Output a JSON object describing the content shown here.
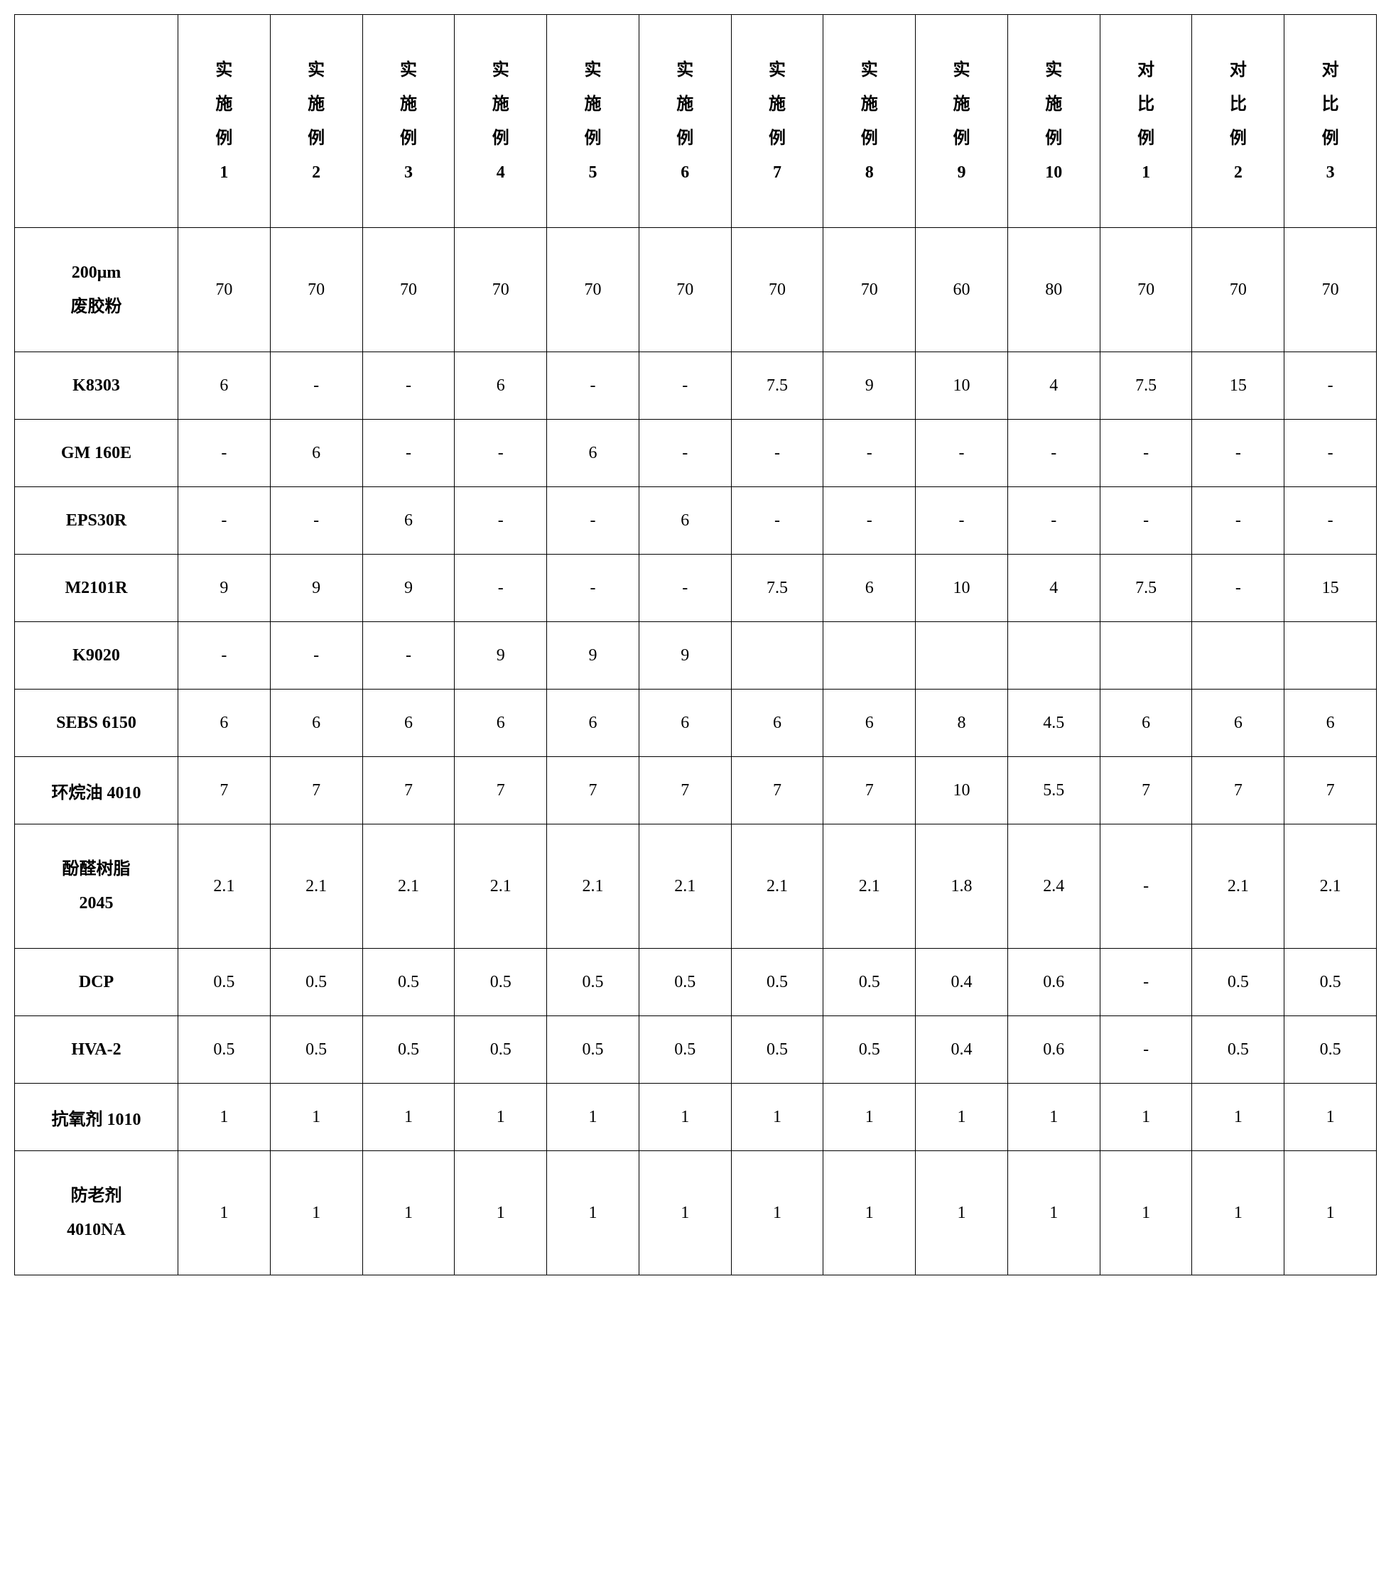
{
  "table": {
    "header_labels": [
      "实施例1",
      "实施例2",
      "实施例3",
      "实施例4",
      "实施例5",
      "实施例6",
      "实施例7",
      "实施例8",
      "实施例9",
      "实施例10",
      "对比例1",
      "对比例2",
      "对比例3"
    ],
    "rows": [
      {
        "label": "200μm 废胶粉",
        "tall": true,
        "cells": [
          "70",
          "70",
          "70",
          "70",
          "70",
          "70",
          "70",
          "70",
          "60",
          "80",
          "70",
          "70",
          "70"
        ]
      },
      {
        "label": "K8303",
        "tall": false,
        "cells": [
          "6",
          "-",
          "-",
          "6",
          "-",
          "-",
          "7.5",
          "9",
          "10",
          "4",
          "7.5",
          "15",
          "-"
        ]
      },
      {
        "label": "GM 160E",
        "tall": false,
        "cells": [
          "-",
          "6",
          "-",
          "-",
          "6",
          "-",
          "-",
          "-",
          "-",
          "-",
          "-",
          "-",
          "-"
        ]
      },
      {
        "label": "EPS30R",
        "tall": false,
        "cells": [
          "-",
          "-",
          "6",
          "-",
          "-",
          "6",
          "-",
          "-",
          "-",
          "-",
          "-",
          "-",
          "-"
        ]
      },
      {
        "label": "M2101R",
        "tall": false,
        "cells": [
          "9",
          "9",
          "9",
          "-",
          "-",
          "-",
          "7.5",
          "6",
          "10",
          "4",
          "7.5",
          "-",
          "15"
        ]
      },
      {
        "label": "K9020",
        "tall": false,
        "cells": [
          "-",
          "-",
          "-",
          "9",
          "9",
          "9",
          "",
          "",
          "",
          "",
          "",
          "",
          ""
        ]
      },
      {
        "label": "SEBS 6150",
        "tall": false,
        "cells": [
          "6",
          "6",
          "6",
          "6",
          "6",
          "6",
          "6",
          "6",
          "8",
          "4.5",
          "6",
          "6",
          "6"
        ]
      },
      {
        "label": "环烷油 4010",
        "tall": false,
        "cells": [
          "7",
          "7",
          "7",
          "7",
          "7",
          "7",
          "7",
          "7",
          "10",
          "5.5",
          "7",
          "7",
          "7"
        ]
      },
      {
        "label": "酚醛树脂 2045",
        "tall": true,
        "cells": [
          "2.1",
          "2.1",
          "2.1",
          "2.1",
          "2.1",
          "2.1",
          "2.1",
          "2.1",
          "1.8",
          "2.4",
          "-",
          "2.1",
          "2.1"
        ]
      },
      {
        "label": "DCP",
        "tall": false,
        "cells": [
          "0.5",
          "0.5",
          "0.5",
          "0.5",
          "0.5",
          "0.5",
          "0.5",
          "0.5",
          "0.4",
          "0.6",
          "-",
          "0.5",
          "0.5"
        ]
      },
      {
        "label": "HVA-2",
        "tall": false,
        "cells": [
          "0.5",
          "0.5",
          "0.5",
          "0.5",
          "0.5",
          "0.5",
          "0.5",
          "0.5",
          "0.4",
          "0.6",
          "-",
          "0.5",
          "0.5"
        ]
      },
      {
        "label": "抗氧剂 1010",
        "tall": false,
        "cells": [
          "1",
          "1",
          "1",
          "1",
          "1",
          "1",
          "1",
          "1",
          "1",
          "1",
          "1",
          "1",
          "1"
        ]
      },
      {
        "label": "防老剂 4010NA",
        "tall": true,
        "cells": [
          "1",
          "1",
          "1",
          "1",
          "1",
          "1",
          "1",
          "1",
          "1",
          "1",
          "1",
          "1",
          "1"
        ]
      }
    ]
  },
  "style": {
    "background_color": "#ffffff",
    "text_color": "#000000",
    "border_color": "#000000",
    "font_family": "Times New Roman / SimSun",
    "font_size_pt": 18
  }
}
